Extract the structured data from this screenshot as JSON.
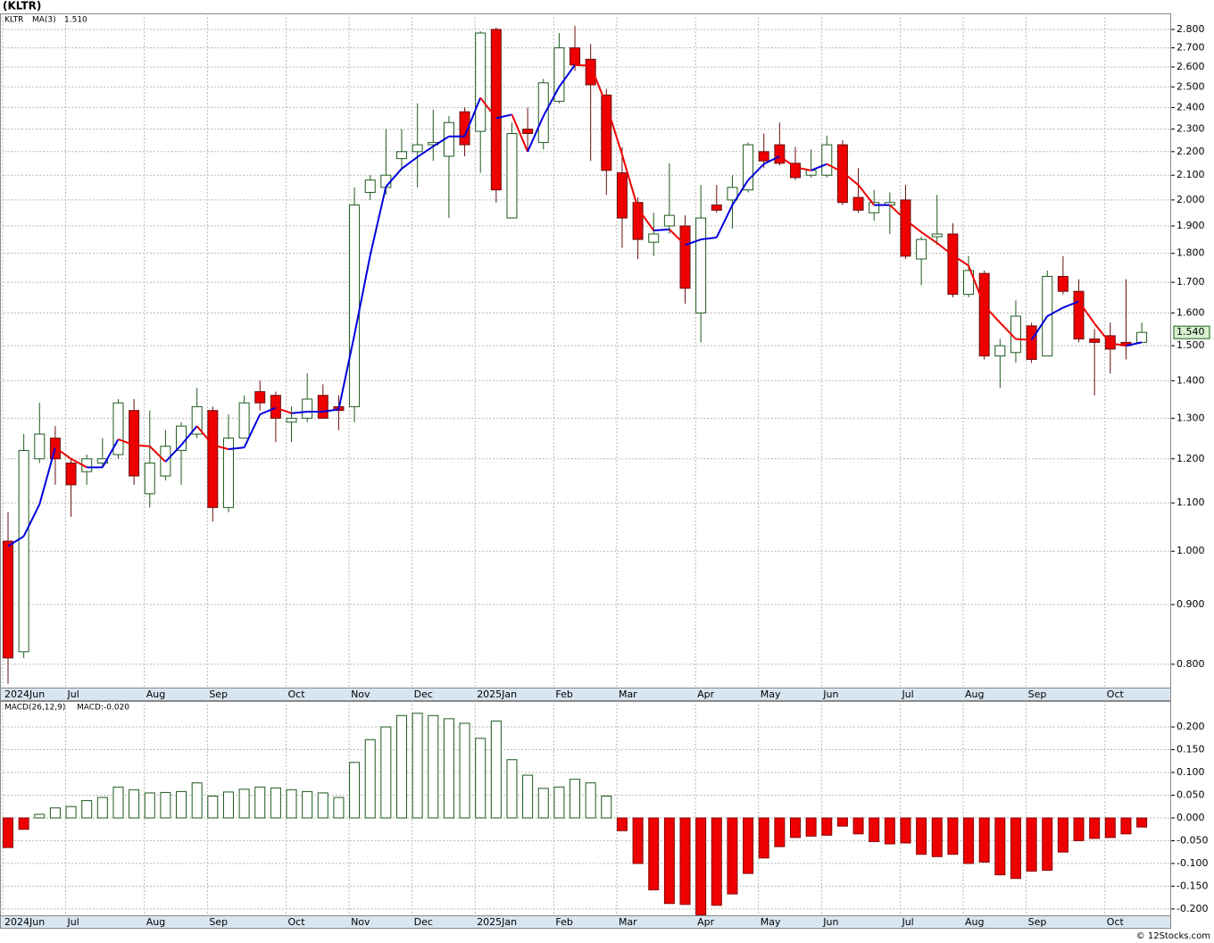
{
  "title": "(KLTR)",
  "watermark": "© 12Stocks.com",
  "chart_data": [
    {
      "type": "candlestick",
      "name": "KLTR",
      "categories": [
        "2024Jun",
        null,
        null,
        null,
        "Jul",
        null,
        null,
        null,
        null,
        "Aug",
        null,
        null,
        null,
        "Sep",
        null,
        null,
        null,
        null,
        "Oct",
        null,
        null,
        null,
        "Nov",
        null,
        null,
        null,
        "Dec",
        null,
        null,
        null,
        "2025Jan",
        null,
        null,
        null,
        null,
        "Feb",
        null,
        null,
        null,
        "Mar",
        null,
        null,
        null,
        null,
        "Apr",
        null,
        null,
        null,
        "May",
        null,
        null,
        null,
        "Jun",
        null,
        null,
        null,
        null,
        "Jul",
        null,
        null,
        null,
        "Aug",
        null,
        null,
        null,
        "Sep",
        null,
        null,
        null,
        null,
        "Oct",
        null,
        null
      ],
      "open": [
        1.02,
        0.82,
        1.2,
        1.25,
        1.19,
        1.17,
        1.19,
        1.21,
        1.32,
        1.12,
        1.16,
        1.22,
        1.26,
        1.32,
        1.09,
        1.25,
        1.37,
        1.36,
        1.29,
        1.3,
        1.36,
        1.33,
        1.33,
        2.03,
        2.05,
        2.17,
        2.2,
        2.23,
        2.18,
        2.38,
        2.29,
        2.8,
        1.93,
        2.3,
        2.24,
        2.43,
        2.7,
        2.64,
        2.46,
        2.11,
        1.99,
        1.84,
        1.9,
        1.9,
        1.6,
        1.98,
        2.0,
        2.04,
        2.2,
        2.23,
        2.15,
        2.1,
        2.1,
        2.23,
        2.01,
        1.95,
        1.98,
        2.0,
        1.78,
        1.86,
        1.87,
        1.66,
        1.73,
        1.47,
        1.48,
        1.56,
        1.47,
        1.72,
        1.67,
        1.52,
        1.53,
        1.51,
        1.51
      ],
      "high": [
        1.08,
        1.26,
        1.34,
        1.28,
        1.2,
        1.21,
        1.25,
        1.35,
        1.35,
        1.32,
        1.27,
        1.29,
        1.38,
        1.33,
        1.31,
        1.36,
        1.4,
        1.37,
        1.33,
        1.42,
        1.39,
        1.36,
        2.05,
        2.1,
        2.3,
        2.3,
        2.42,
        2.39,
        2.36,
        2.4,
        2.79,
        2.81,
        2.33,
        2.4,
        2.54,
        2.78,
        2.82,
        2.72,
        2.49,
        2.22,
        2.01,
        1.95,
        2.15,
        1.94,
        2.06,
        2.06,
        2.1,
        2.24,
        2.28,
        2.33,
        2.22,
        2.21,
        2.27,
        2.25,
        2.13,
        2.04,
        2.03,
        2.06,
        1.86,
        2.02,
        1.91,
        1.79,
        1.74,
        1.52,
        1.64,
        1.57,
        1.74,
        1.79,
        1.71,
        1.55,
        1.57,
        1.71,
        1.57
      ],
      "low": [
        0.77,
        0.81,
        1.19,
        1.14,
        1.07,
        1.14,
        1.18,
        1.2,
        1.14,
        1.09,
        1.15,
        1.14,
        1.25,
        1.06,
        1.08,
        1.25,
        1.32,
        1.24,
        1.24,
        1.29,
        1.3,
        1.27,
        1.29,
        2.0,
        2.02,
        2.13,
        2.05,
        2.16,
        1.93,
        2.18,
        2.11,
        1.99,
        1.93,
        2.21,
        2.21,
        2.42,
        2.58,
        2.16,
        2.02,
        1.82,
        1.78,
        1.79,
        1.87,
        1.63,
        1.51,
        1.95,
        1.89,
        2.03,
        2.13,
        2.14,
        2.08,
        2.09,
        2.09,
        1.98,
        1.95,
        1.92,
        1.87,
        1.78,
        1.69,
        1.83,
        1.65,
        1.65,
        1.46,
        1.38,
        1.45,
        1.45,
        1.47,
        1.66,
        1.51,
        1.36,
        1.42,
        1.46,
        1.51
      ],
      "close": [
        0.81,
        1.22,
        1.26,
        1.2,
        1.14,
        1.2,
        1.2,
        1.34,
        1.16,
        1.19,
        1.23,
        1.28,
        1.33,
        1.09,
        1.25,
        1.34,
        1.34,
        1.3,
        1.3,
        1.35,
        1.3,
        1.32,
        1.98,
        2.08,
        2.1,
        2.2,
        2.23,
        2.24,
        2.33,
        2.23,
        2.78,
        2.04,
        2.28,
        2.28,
        2.52,
        2.7,
        2.61,
        2.51,
        2.12,
        1.93,
        1.85,
        1.87,
        1.94,
        1.68,
        1.93,
        1.96,
        2.05,
        2.23,
        2.16,
        2.15,
        2.09,
        2.12,
        2.23,
        1.99,
        1.96,
        1.99,
        1.99,
        1.79,
        1.85,
        1.87,
        1.66,
        1.74,
        1.47,
        1.5,
        1.59,
        1.46,
        1.72,
        1.67,
        1.52,
        1.51,
        1.49,
        1.5,
        1.54
      ],
      "last_value_label": "1.540",
      "up_color": "#1e5a1e",
      "down_color": "#ee0000",
      "tag_color": "#d8f0d0",
      "ylim": [
        0.764,
        2.89
      ],
      "log_scale": true,
      "grid": true,
      "yticks": [
        {
          "value": 0.8,
          "label": "0.800"
        },
        {
          "value": 0.9,
          "label": "0.900"
        },
        {
          "value": 1.0,
          "label": "1.000"
        },
        {
          "value": 1.1,
          "label": "1.100"
        },
        {
          "value": 1.2,
          "label": "1.200"
        },
        {
          "value": 1.3,
          "label": "1.300"
        },
        {
          "value": 1.4,
          "label": "1.400"
        },
        {
          "value": 1.5,
          "label": "1.500"
        },
        {
          "value": 1.6,
          "label": "1.600"
        },
        {
          "value": 1.7,
          "label": "1.700"
        },
        {
          "value": 1.8,
          "label": "1.800"
        },
        {
          "value": 1.9,
          "label": "1.900"
        },
        {
          "value": 2.0,
          "label": "2.000"
        },
        {
          "value": 2.1,
          "label": "2.100"
        },
        {
          "value": 2.2,
          "label": "2.200"
        },
        {
          "value": 2.3,
          "label": "2.300"
        },
        {
          "value": 2.4,
          "label": "2.400"
        },
        {
          "value": 2.5,
          "label": "2.500"
        },
        {
          "value": 2.6,
          "label": "2.600"
        },
        {
          "value": 2.7,
          "label": "2.700"
        },
        {
          "value": 2.8,
          "label": "2.800"
        }
      ],
      "overlay": {
        "name": "MA(3)",
        "value_label": "1.510",
        "up_color": "#0000dd",
        "down_color": "#ee0000",
        "values": [
          1.01,
          1.03,
          1.097,
          1.227,
          1.2,
          1.18,
          1.18,
          1.247,
          1.233,
          1.23,
          1.193,
          1.233,
          1.28,
          1.233,
          1.223,
          1.227,
          1.31,
          1.327,
          1.313,
          1.317,
          1.317,
          1.323,
          1.533,
          1.793,
          2.053,
          2.127,
          2.177,
          2.223,
          2.267,
          2.267,
          2.447,
          2.35,
          2.367,
          2.2,
          2.36,
          2.5,
          2.61,
          2.607,
          2.413,
          2.187,
          1.967,
          1.883,
          1.887,
          1.83,
          1.85,
          1.857,
          1.98,
          2.08,
          2.147,
          2.18,
          2.133,
          2.12,
          2.147,
          2.113,
          2.06,
          1.98,
          1.98,
          1.923,
          1.877,
          1.837,
          1.793,
          1.757,
          1.623,
          1.57,
          1.52,
          1.517,
          1.59,
          1.617,
          1.637,
          1.567,
          1.507,
          1.5,
          1.51
        ]
      }
    },
    {
      "type": "bar",
      "name": "MACD(26,12,9)",
      "value_label": "MACD:-0.020",
      "categories": [
        "2024Jun",
        null,
        null,
        null,
        "Jul",
        null,
        null,
        null,
        null,
        "Aug",
        null,
        null,
        null,
        "Sep",
        null,
        null,
        null,
        null,
        "Oct",
        null,
        null,
        null,
        "Nov",
        null,
        null,
        null,
        "Dec",
        null,
        null,
        null,
        "2025Jan",
        null,
        null,
        null,
        null,
        "Feb",
        null,
        null,
        null,
        "Mar",
        null,
        null,
        null,
        null,
        "Apr",
        null,
        null,
        null,
        "May",
        null,
        null,
        null,
        "Jun",
        null,
        null,
        null,
        null,
        "Jul",
        null,
        null,
        null,
        "Aug",
        null,
        null,
        null,
        "Sep",
        null,
        null,
        null,
        null,
        "Oct",
        null,
        null
      ],
      "values": [
        -0.065,
        -0.025,
        0.008,
        0.022,
        0.025,
        0.038,
        0.045,
        0.068,
        0.062,
        0.055,
        0.056,
        0.058,
        0.077,
        0.048,
        0.057,
        0.063,
        0.068,
        0.066,
        0.062,
        0.058,
        0.055,
        0.045,
        0.122,
        0.172,
        0.2,
        0.225,
        0.23,
        0.225,
        0.218,
        0.208,
        0.175,
        0.213,
        0.128,
        0.094,
        0.065,
        0.068,
        0.085,
        0.077,
        0.048,
        -0.028,
        -0.1,
        -0.158,
        -0.188,
        -0.19,
        -0.213,
        -0.192,
        -0.167,
        -0.122,
        -0.088,
        -0.063,
        -0.043,
        -0.04,
        -0.038,
        -0.018,
        -0.035,
        -0.052,
        -0.057,
        -0.055,
        -0.08,
        -0.085,
        -0.08,
        -0.1,
        -0.097,
        -0.125,
        -0.133,
        -0.117,
        -0.115,
        -0.075,
        -0.05,
        -0.045,
        -0.043,
        -0.035,
        -0.02
      ],
      "up_color": "#1e5a1e",
      "down_color": "#ee0000",
      "ylim": [
        -0.214,
        0.257
      ],
      "grid": true,
      "yticks": [
        {
          "value": -0.2,
          "label": "-0.200"
        },
        {
          "value": -0.15,
          "label": "-0.150"
        },
        {
          "value": -0.1,
          "label": "-0.100"
        },
        {
          "value": -0.05,
          "label": "-0.050"
        },
        {
          "value": 0,
          "label": "0.000"
        },
        {
          "value": 0.05,
          "label": "0.050"
        },
        {
          "value": 0.1,
          "label": "0.100"
        },
        {
          "value": 0.15,
          "label": "0.150"
        },
        {
          "value": 0.2,
          "label": "0.200"
        }
      ]
    }
  ]
}
